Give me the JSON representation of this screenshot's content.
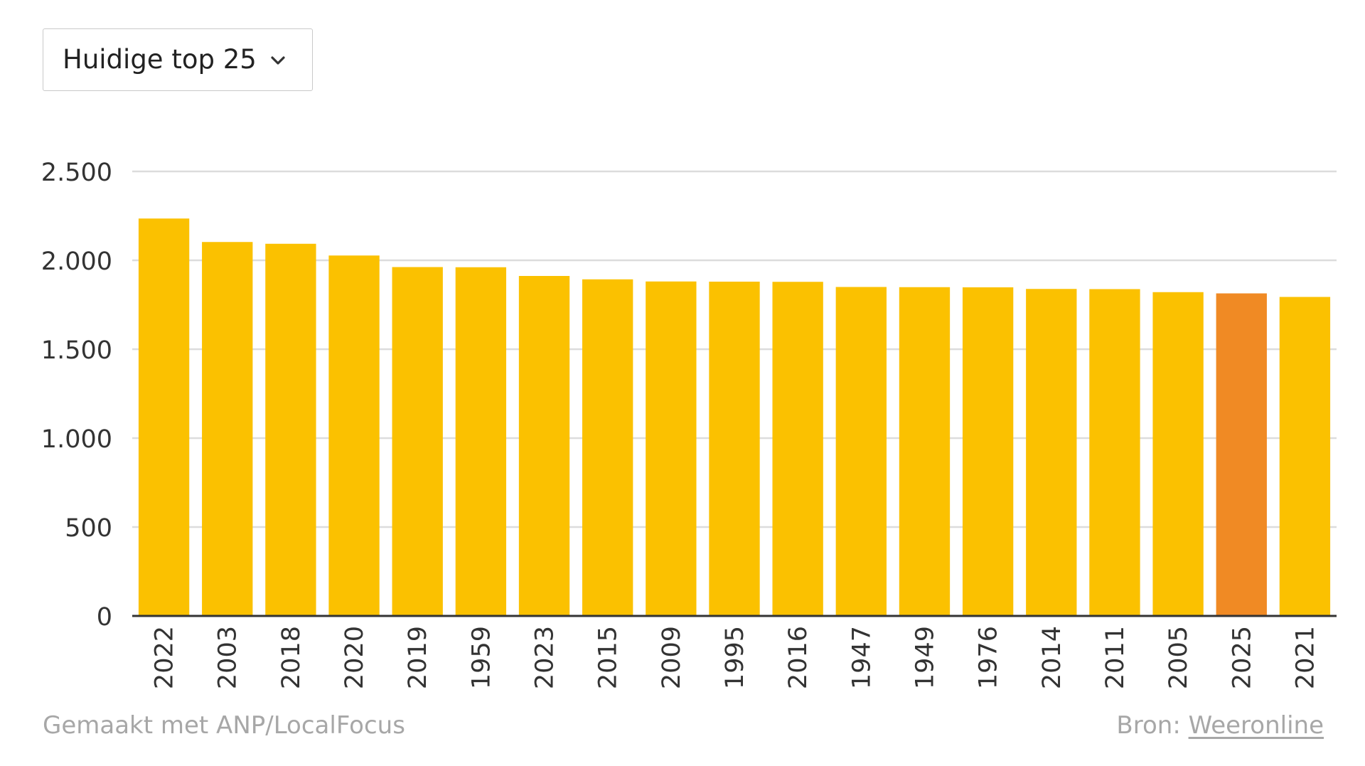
{
  "dropdown": {
    "selected": "Huidige top 25",
    "icon": "chevron-down-icon"
  },
  "footer": {
    "credit": "Gemaakt met ANP/LocalFocus",
    "source_label": "Bron:",
    "source_link": "Weeronline"
  },
  "colors": {
    "bar": "#FBC100",
    "highlight": "#F08A24",
    "grid": "#dcdcdc",
    "axis": "#333333"
  },
  "chart_data": {
    "type": "bar",
    "categories": [
      "2022",
      "2003",
      "2018",
      "2020",
      "2019",
      "1959",
      "2023",
      "2015",
      "2009",
      "1995",
      "2016",
      "1947",
      "1949",
      "1976",
      "2014",
      "2011",
      "2005",
      "2025",
      "2021"
    ],
    "values": [
      2235,
      2103,
      2093,
      2027,
      1962,
      1961,
      1912,
      1893,
      1881,
      1880,
      1879,
      1850,
      1849,
      1848,
      1839,
      1838,
      1821,
      1814,
      1794
    ],
    "highlight": "2025",
    "ylim": [
      0,
      2500
    ],
    "yticks": [
      0,
      500,
      1000,
      1500,
      2000,
      2500
    ],
    "ytick_labels": [
      "0",
      "500",
      "1.000",
      "1.500",
      "2.000",
      "2.500"
    ],
    "grid": true,
    "title": "",
    "xlabel": "",
    "ylabel": ""
  }
}
